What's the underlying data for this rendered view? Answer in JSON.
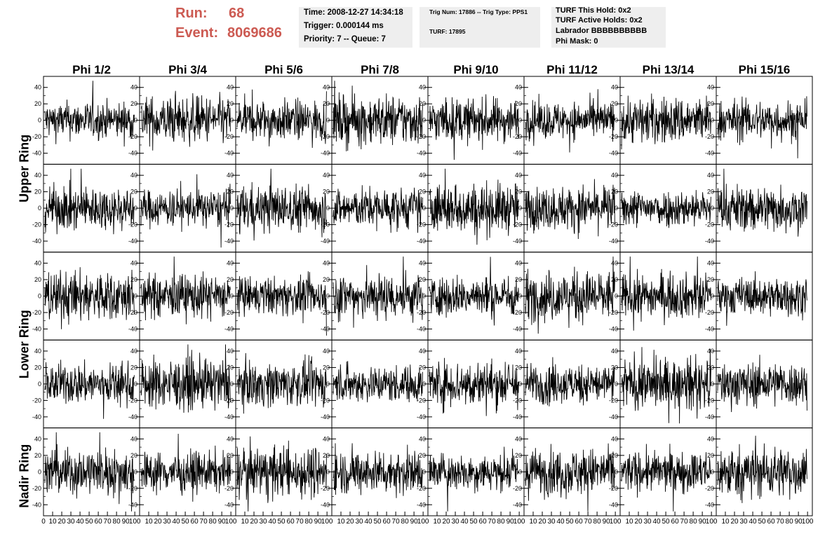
{
  "header": {
    "run_label": "Run:",
    "run_value": "68",
    "event_label": "Event:",
    "event_value": "8069686"
  },
  "time_panel": {
    "time": "Time: 2008-12-27 14:34:18",
    "trigger": "Trigger: 0.000144 ms",
    "priority": "Priority: 7 -- Queue: 7"
  },
  "trig_panel": {
    "trig": "Trig Num: 17886 -- Trig Type: PPS1",
    "turf": "TURF: 17895"
  },
  "turf_panel": {
    "hold": "TURF This Hold: 0x2",
    "active": "TURF Active Holds: 0x2",
    "labrador": "Labrador BBBBBBBBBB",
    "phimask": "Phi Mask: 0"
  },
  "columns": [
    "Phi 1/2",
    "Phi 3/4",
    "Phi 5/6",
    "Phi 7/8",
    "Phi 9/10",
    "Phi 11/12",
    "Phi 13/14",
    "Phi 15/16"
  ],
  "ring_labels": [
    "Upper Ring",
    "Lower Ring",
    "Nadir Ring"
  ],
  "y_ticks": [
    "40",
    "20",
    "0",
    "-20",
    "-40"
  ],
  "x_ticks": [
    "0",
    "10",
    "20",
    "30",
    "40",
    "50",
    "60",
    "70",
    "80",
    "90",
    "100"
  ],
  "chart_data": {
    "type": "line",
    "rows": 5,
    "cols": 8,
    "xlim": [
      0,
      100
    ],
    "ylim": [
      -50,
      50
    ],
    "line_color": "#000000"
  }
}
